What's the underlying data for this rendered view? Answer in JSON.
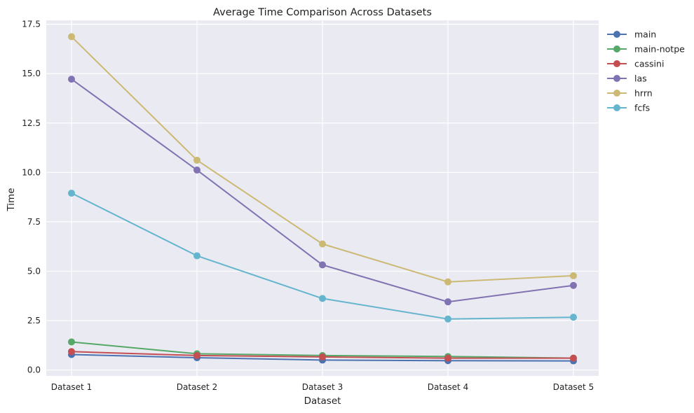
{
  "chart_data": {
    "type": "line",
    "title": "Average Time Comparison Across Datasets",
    "xlabel": "Dataset",
    "ylabel": "Time",
    "categories": [
      "Dataset 1",
      "Dataset 2",
      "Dataset 3",
      "Dataset 4",
      "Dataset 5"
    ],
    "ylim": [
      -0.3,
      17.7
    ],
    "yticks": [
      0.0,
      2.5,
      5.0,
      7.5,
      10.0,
      12.5,
      15.0,
      17.5
    ],
    "ytick_labels": [
      "0.0",
      "2.5",
      "5.0",
      "7.5",
      "10.0",
      "12.5",
      "15.0",
      "17.5"
    ],
    "grid": true,
    "background": "#eaeaf2",
    "legend_position": "outside upper right",
    "series": [
      {
        "name": "main",
        "color": "#4c72b0",
        "values": [
          0.78,
          0.62,
          0.5,
          0.47,
          0.46
        ]
      },
      {
        "name": "main-notpe",
        "color": "#55a868",
        "values": [
          1.42,
          0.82,
          0.73,
          0.68,
          0.6
        ]
      },
      {
        "name": "cassini",
        "color": "#c44e52",
        "values": [
          0.93,
          0.73,
          0.66,
          0.6,
          0.6
        ]
      },
      {
        "name": "las",
        "color": "#8172b2",
        "values": [
          14.72,
          10.12,
          5.32,
          3.45,
          4.28
        ]
      },
      {
        "name": "hrrn",
        "color": "#ccb974",
        "values": [
          16.87,
          10.62,
          6.38,
          4.46,
          4.77
        ]
      },
      {
        "name": "fcfs",
        "color": "#64b5cd",
        "values": [
          8.95,
          5.78,
          3.62,
          2.58,
          2.67
        ]
      }
    ]
  }
}
